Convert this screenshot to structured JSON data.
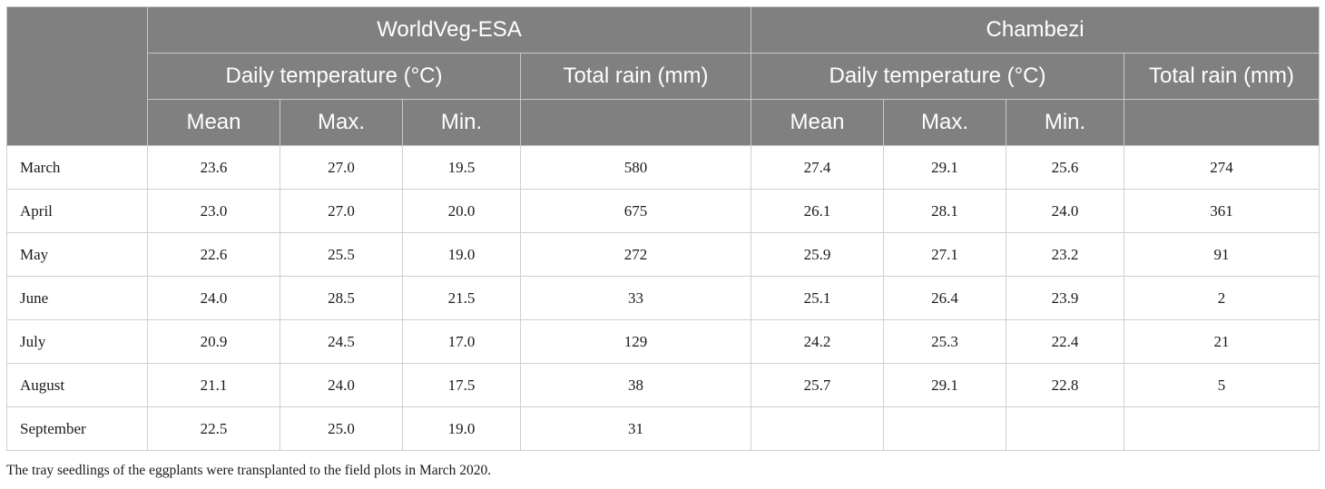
{
  "sites": [
    "WorldVeg-ESA",
    "Chambezi"
  ],
  "group_headers": [
    "Daily temperature (°C)",
    "Total rain (mm)"
  ],
  "sub_headers": [
    "Mean",
    "Max.",
    "Min."
  ],
  "rows": [
    {
      "month": "March",
      "cells": [
        "23.6",
        "27.0",
        "19.5",
        "580",
        "27.4",
        "29.1",
        "25.6",
        "274"
      ]
    },
    {
      "month": "April",
      "cells": [
        "23.0",
        "27.0",
        "20.0",
        "675",
        "26.1",
        "28.1",
        "24.0",
        "361"
      ]
    },
    {
      "month": "May",
      "cells": [
        "22.6",
        "25.5",
        "19.0",
        "272",
        "25.9",
        "27.1",
        "23.2",
        "91"
      ]
    },
    {
      "month": "June",
      "cells": [
        "24.0",
        "28.5",
        "21.5",
        "33",
        "25.1",
        "26.4",
        "23.9",
        "2"
      ]
    },
    {
      "month": "July",
      "cells": [
        "20.9",
        "24.5",
        "17.0",
        "129",
        "24.2",
        "25.3",
        "22.4",
        "21"
      ]
    },
    {
      "month": "August",
      "cells": [
        "21.1",
        "24.0",
        "17.5",
        "38",
        "25.7",
        "29.1",
        "22.8",
        "5"
      ]
    },
    {
      "month": "September",
      "cells": [
        "22.5",
        "25.0",
        "19.0",
        "31",
        "",
        "",
        "",
        ""
      ]
    }
  ],
  "footnote": "The tray seedlings of the eggplants were transplanted to the field plots in March 2020."
}
